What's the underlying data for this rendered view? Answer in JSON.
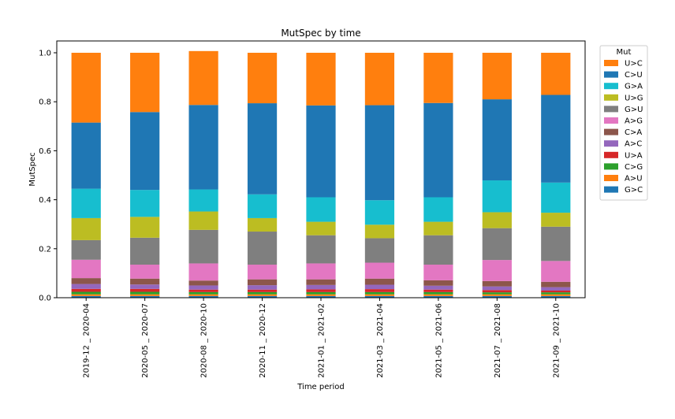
{
  "chart_data": {
    "type": "bar",
    "stacked": true,
    "title": "MutSpec by time",
    "xlabel": "Time period",
    "ylabel": "MutSpec",
    "ylim": [
      0,
      1.0
    ],
    "yticks": [
      "0.0",
      "0.2",
      "0.4",
      "0.6",
      "0.8",
      "1.0"
    ],
    "grid": false,
    "legend_title": "Mut",
    "legend_position": "right",
    "categories": [
      "2019-12 _ 2020-04",
      "2020-05 _ 2020-07",
      "2020-08 _ 2020-10",
      "2020-11 _ 2020-12",
      "2021-01 _ 2021-02",
      "2021-03 _ 2021-04",
      "2021-05 _ 2021-06",
      "2021-07 _ 2021-08",
      "2021-09 _ 2021-10"
    ],
    "series": [
      {
        "name": "G>C",
        "color": "#1f77b4",
        "values": [
          0.007,
          0.007,
          0.007,
          0.007,
          0.007,
          0.007,
          0.007,
          0.007,
          0.007
        ]
      },
      {
        "name": "A>U",
        "color": "#ff7f0e",
        "values": [
          0.007,
          0.007,
          0.007,
          0.007,
          0.007,
          0.007,
          0.007,
          0.007,
          0.007
        ]
      },
      {
        "name": "C>G",
        "color": "#2ca02c",
        "values": [
          0.01,
          0.01,
          0.009,
          0.009,
          0.009,
          0.009,
          0.009,
          0.008,
          0.008
        ]
      },
      {
        "name": "U>A",
        "color": "#d62728",
        "values": [
          0.012,
          0.012,
          0.01,
          0.01,
          0.011,
          0.012,
          0.01,
          0.009,
          0.007
        ]
      },
      {
        "name": "A>C",
        "color": "#9467bd",
        "values": [
          0.02,
          0.018,
          0.017,
          0.018,
          0.018,
          0.018,
          0.016,
          0.015,
          0.014
        ]
      },
      {
        "name": "C>A",
        "color": "#8c564b",
        "values": [
          0.024,
          0.024,
          0.02,
          0.024,
          0.023,
          0.025,
          0.022,
          0.022,
          0.022
        ]
      },
      {
        "name": "A>G",
        "color": "#e377c2",
        "values": [
          0.075,
          0.057,
          0.07,
          0.06,
          0.065,
          0.065,
          0.064,
          0.086,
          0.085
        ]
      },
      {
        "name": "G>U",
        "color": "#7f7f7f",
        "values": [
          0.08,
          0.11,
          0.137,
          0.135,
          0.115,
          0.1,
          0.12,
          0.13,
          0.14
        ]
      },
      {
        "name": "U>G",
        "color": "#bcbd22",
        "values": [
          0.09,
          0.085,
          0.075,
          0.055,
          0.055,
          0.055,
          0.055,
          0.065,
          0.057
        ]
      },
      {
        "name": "G>A",
        "color": "#17becf",
        "values": [
          0.12,
          0.11,
          0.09,
          0.097,
          0.1,
          0.1,
          0.1,
          0.13,
          0.123
        ]
      },
      {
        "name": "C>U",
        "color": "#1f77b4",
        "values": [
          0.27,
          0.318,
          0.345,
          0.372,
          0.375,
          0.388,
          0.385,
          0.331,
          0.358
        ]
      },
      {
        "name": "U>C",
        "color": "#ff7f0e",
        "values": [
          0.285,
          0.242,
          0.22,
          0.206,
          0.215,
          0.214,
          0.205,
          0.19,
          0.172
        ]
      }
    ]
  }
}
